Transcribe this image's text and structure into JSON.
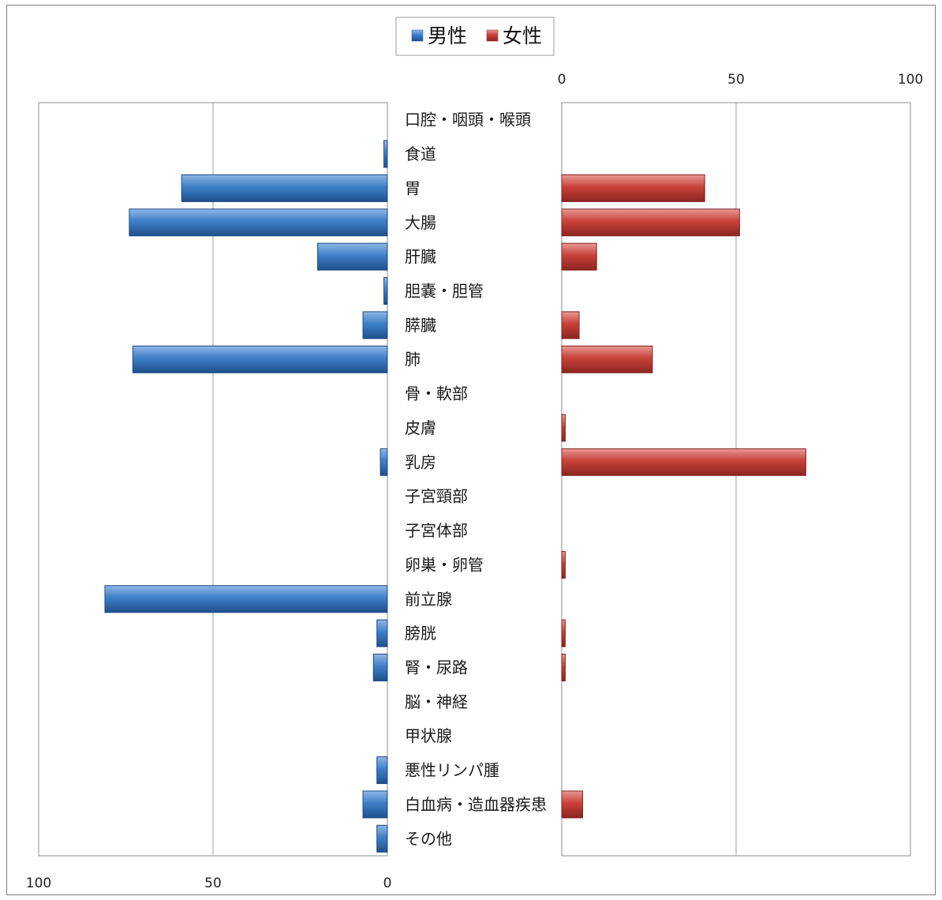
{
  "chart_data": {
    "type": "bar",
    "orientation": "horizontal-butterfly",
    "categories": [
      "口腔・咽頭・喉頭",
      "食道",
      "胃",
      "大腸",
      "肝臓",
      "胆嚢・胆管",
      "膵臓",
      "肺",
      "骨・軟部",
      "皮膚",
      "乳房",
      "子宮頸部",
      "子宮体部",
      "卵巣・卵管",
      "前立腺",
      "膀胱",
      "腎・尿路",
      "脳・神経",
      "甲状腺",
      "悪性リンパ腫",
      "白血病・造血器疾患",
      "その他"
    ],
    "series": [
      {
        "name": "男性",
        "color": "#2e6eb5",
        "values": [
          0,
          1,
          59,
          74,
          20,
          1,
          7,
          73,
          0,
          0,
          2,
          0,
          0,
          0,
          81,
          3,
          4,
          0,
          0,
          3,
          7,
          3
        ]
      },
      {
        "name": "女性",
        "color": "#c0392b",
        "values": [
          0,
          0,
          41,
          51,
          10,
          0,
          5,
          26,
          0,
          1,
          70,
          0,
          0,
          1,
          0,
          1,
          1,
          0,
          0,
          0,
          6,
          0
        ]
      }
    ],
    "left_axis_ticks": [
      "100",
      "50",
      "0"
    ],
    "right_axis_ticks": [
      "0",
      "50",
      "100"
    ],
    "xlim": [
      0,
      100
    ],
    "legend_position": "top-center",
    "grid": true
  }
}
